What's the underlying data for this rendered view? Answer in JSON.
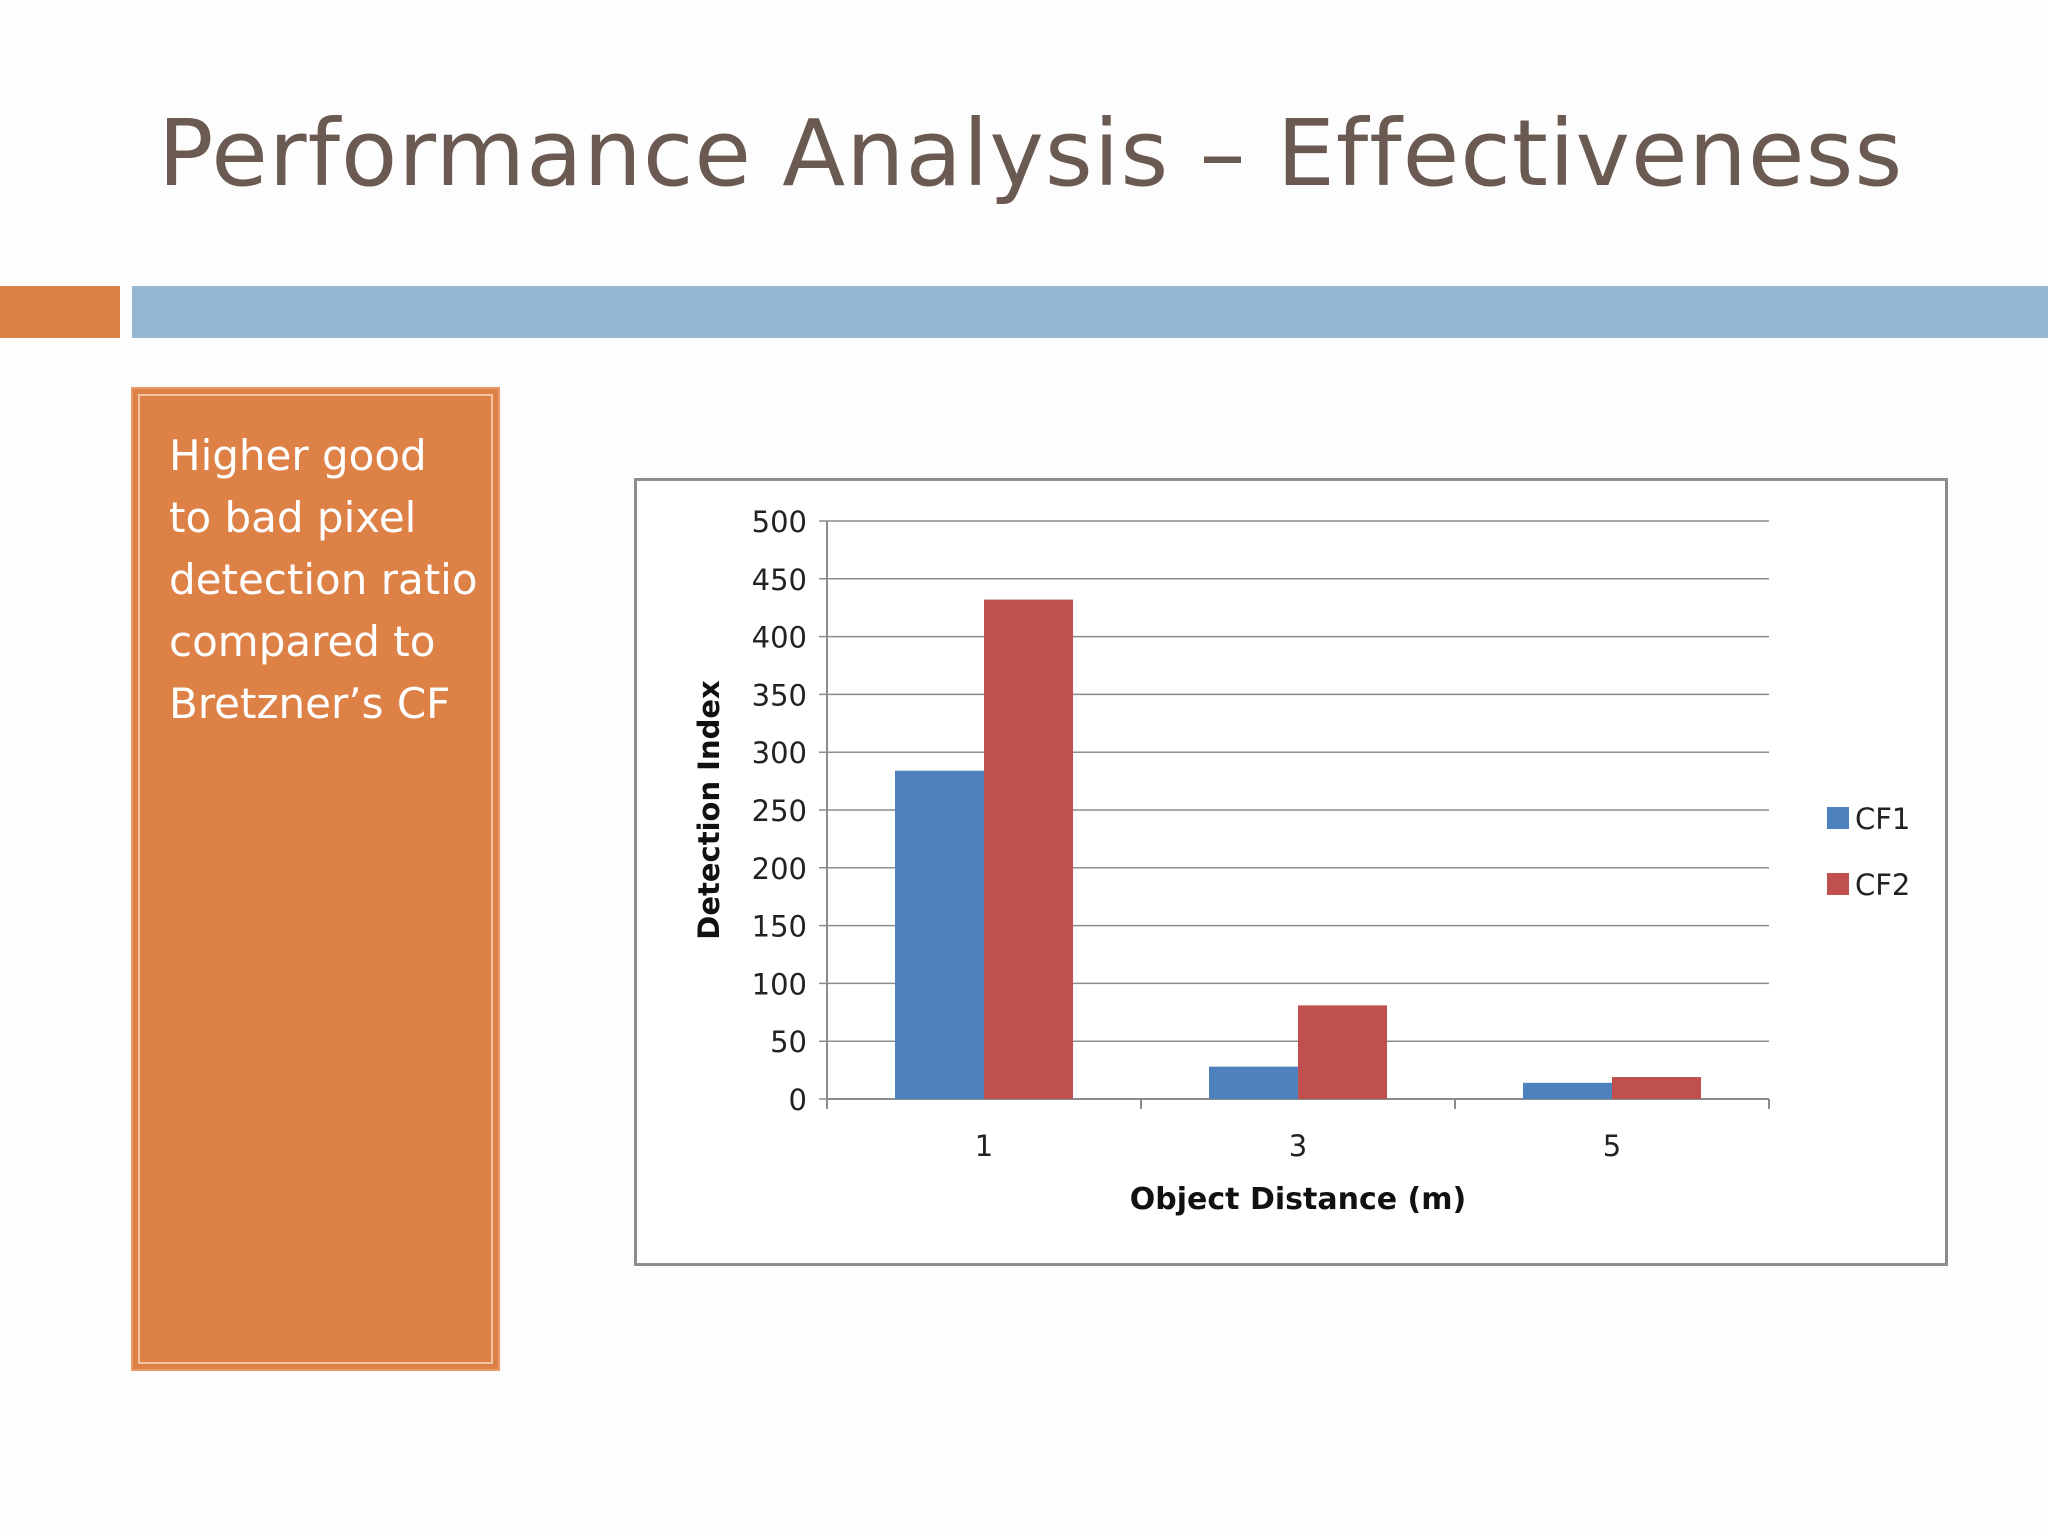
{
  "slide": {
    "title": "Performance Analysis – Effectiveness",
    "callout_text": "Higher good to bad pixel detection ratio compared to Bretzner’s CF"
  },
  "colors": {
    "title": "#6b5a52",
    "accent_orange": "#dd8147",
    "accent_blue": "#93b6d1",
    "series_cf1": "#4f81bd",
    "series_cf2": "#c0504d"
  },
  "chart_data": {
    "type": "bar",
    "categories": [
      "1",
      "3",
      "5"
    ],
    "series": [
      {
        "name": "CF1",
        "values": [
          284,
          28,
          14
        ]
      },
      {
        "name": "CF2",
        "values": [
          432,
          81,
          19
        ]
      }
    ],
    "title": "",
    "xlabel": "Object Distance (m)",
    "ylabel": "Detection Index",
    "ylim": [
      0,
      500
    ],
    "yticks": [
      "0",
      "50",
      "100",
      "150",
      "200",
      "250",
      "300",
      "350",
      "400",
      "450",
      "500"
    ],
    "grid": true,
    "legend_position": "right"
  }
}
